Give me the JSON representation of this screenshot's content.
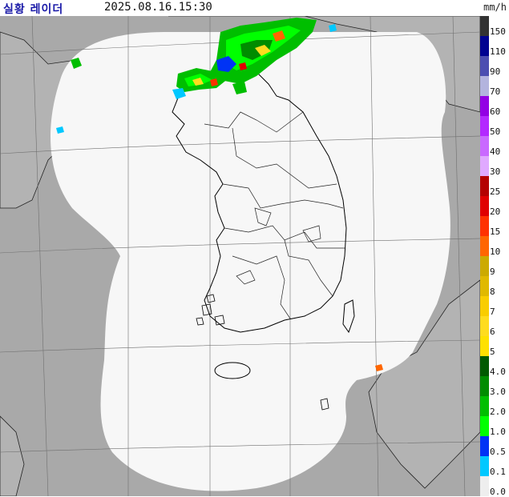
{
  "header": {
    "title": "실황 레이더",
    "timestamp": "2025.08.16.15:30",
    "unit": "mm/h"
  },
  "map": {
    "sea_color": "#a9a9a9",
    "coverage_color": "#f7f7f7",
    "coastline_color": "#000000",
    "grid_color": "#6f6f6f"
  },
  "legend": {
    "items": [
      {
        "label": "150",
        "color": "#333333"
      },
      {
        "label": "110",
        "color": "#000391"
      },
      {
        "label": "90",
        "color": "#4c4eb1"
      },
      {
        "label": "70",
        "color": "#b3b4de"
      },
      {
        "label": "60",
        "color": "#9300e4"
      },
      {
        "label": "50",
        "color": "#b329ff"
      },
      {
        "label": "40",
        "color": "#c969ff"
      },
      {
        "label": "30",
        "color": "#e0a9ff"
      },
      {
        "label": "25",
        "color": "#b40000"
      },
      {
        "label": "20",
        "color": "#e00000"
      },
      {
        "label": "15",
        "color": "#ff3200"
      },
      {
        "label": "10",
        "color": "#ff6600"
      },
      {
        "label": "9",
        "color": "#ccaa00"
      },
      {
        "label": "8",
        "color": "#e0b900"
      },
      {
        "label": "7",
        "color": "#f9cd00"
      },
      {
        "label": "6",
        "color": "#ffdc1f"
      },
      {
        "label": "5",
        "color": "#ffe100"
      },
      {
        "label": "4.0",
        "color": "#005a00"
      },
      {
        "label": "3.0",
        "color": "#008c00"
      },
      {
        "label": "2.0",
        "color": "#00be00"
      },
      {
        "label": "1.0",
        "color": "#00ff00"
      },
      {
        "label": "0.5",
        "color": "#0033f5"
      },
      {
        "label": "0.1",
        "color": "#00c8ff"
      },
      {
        "label": "0.0",
        "color": "#eeeeee"
      }
    ]
  }
}
